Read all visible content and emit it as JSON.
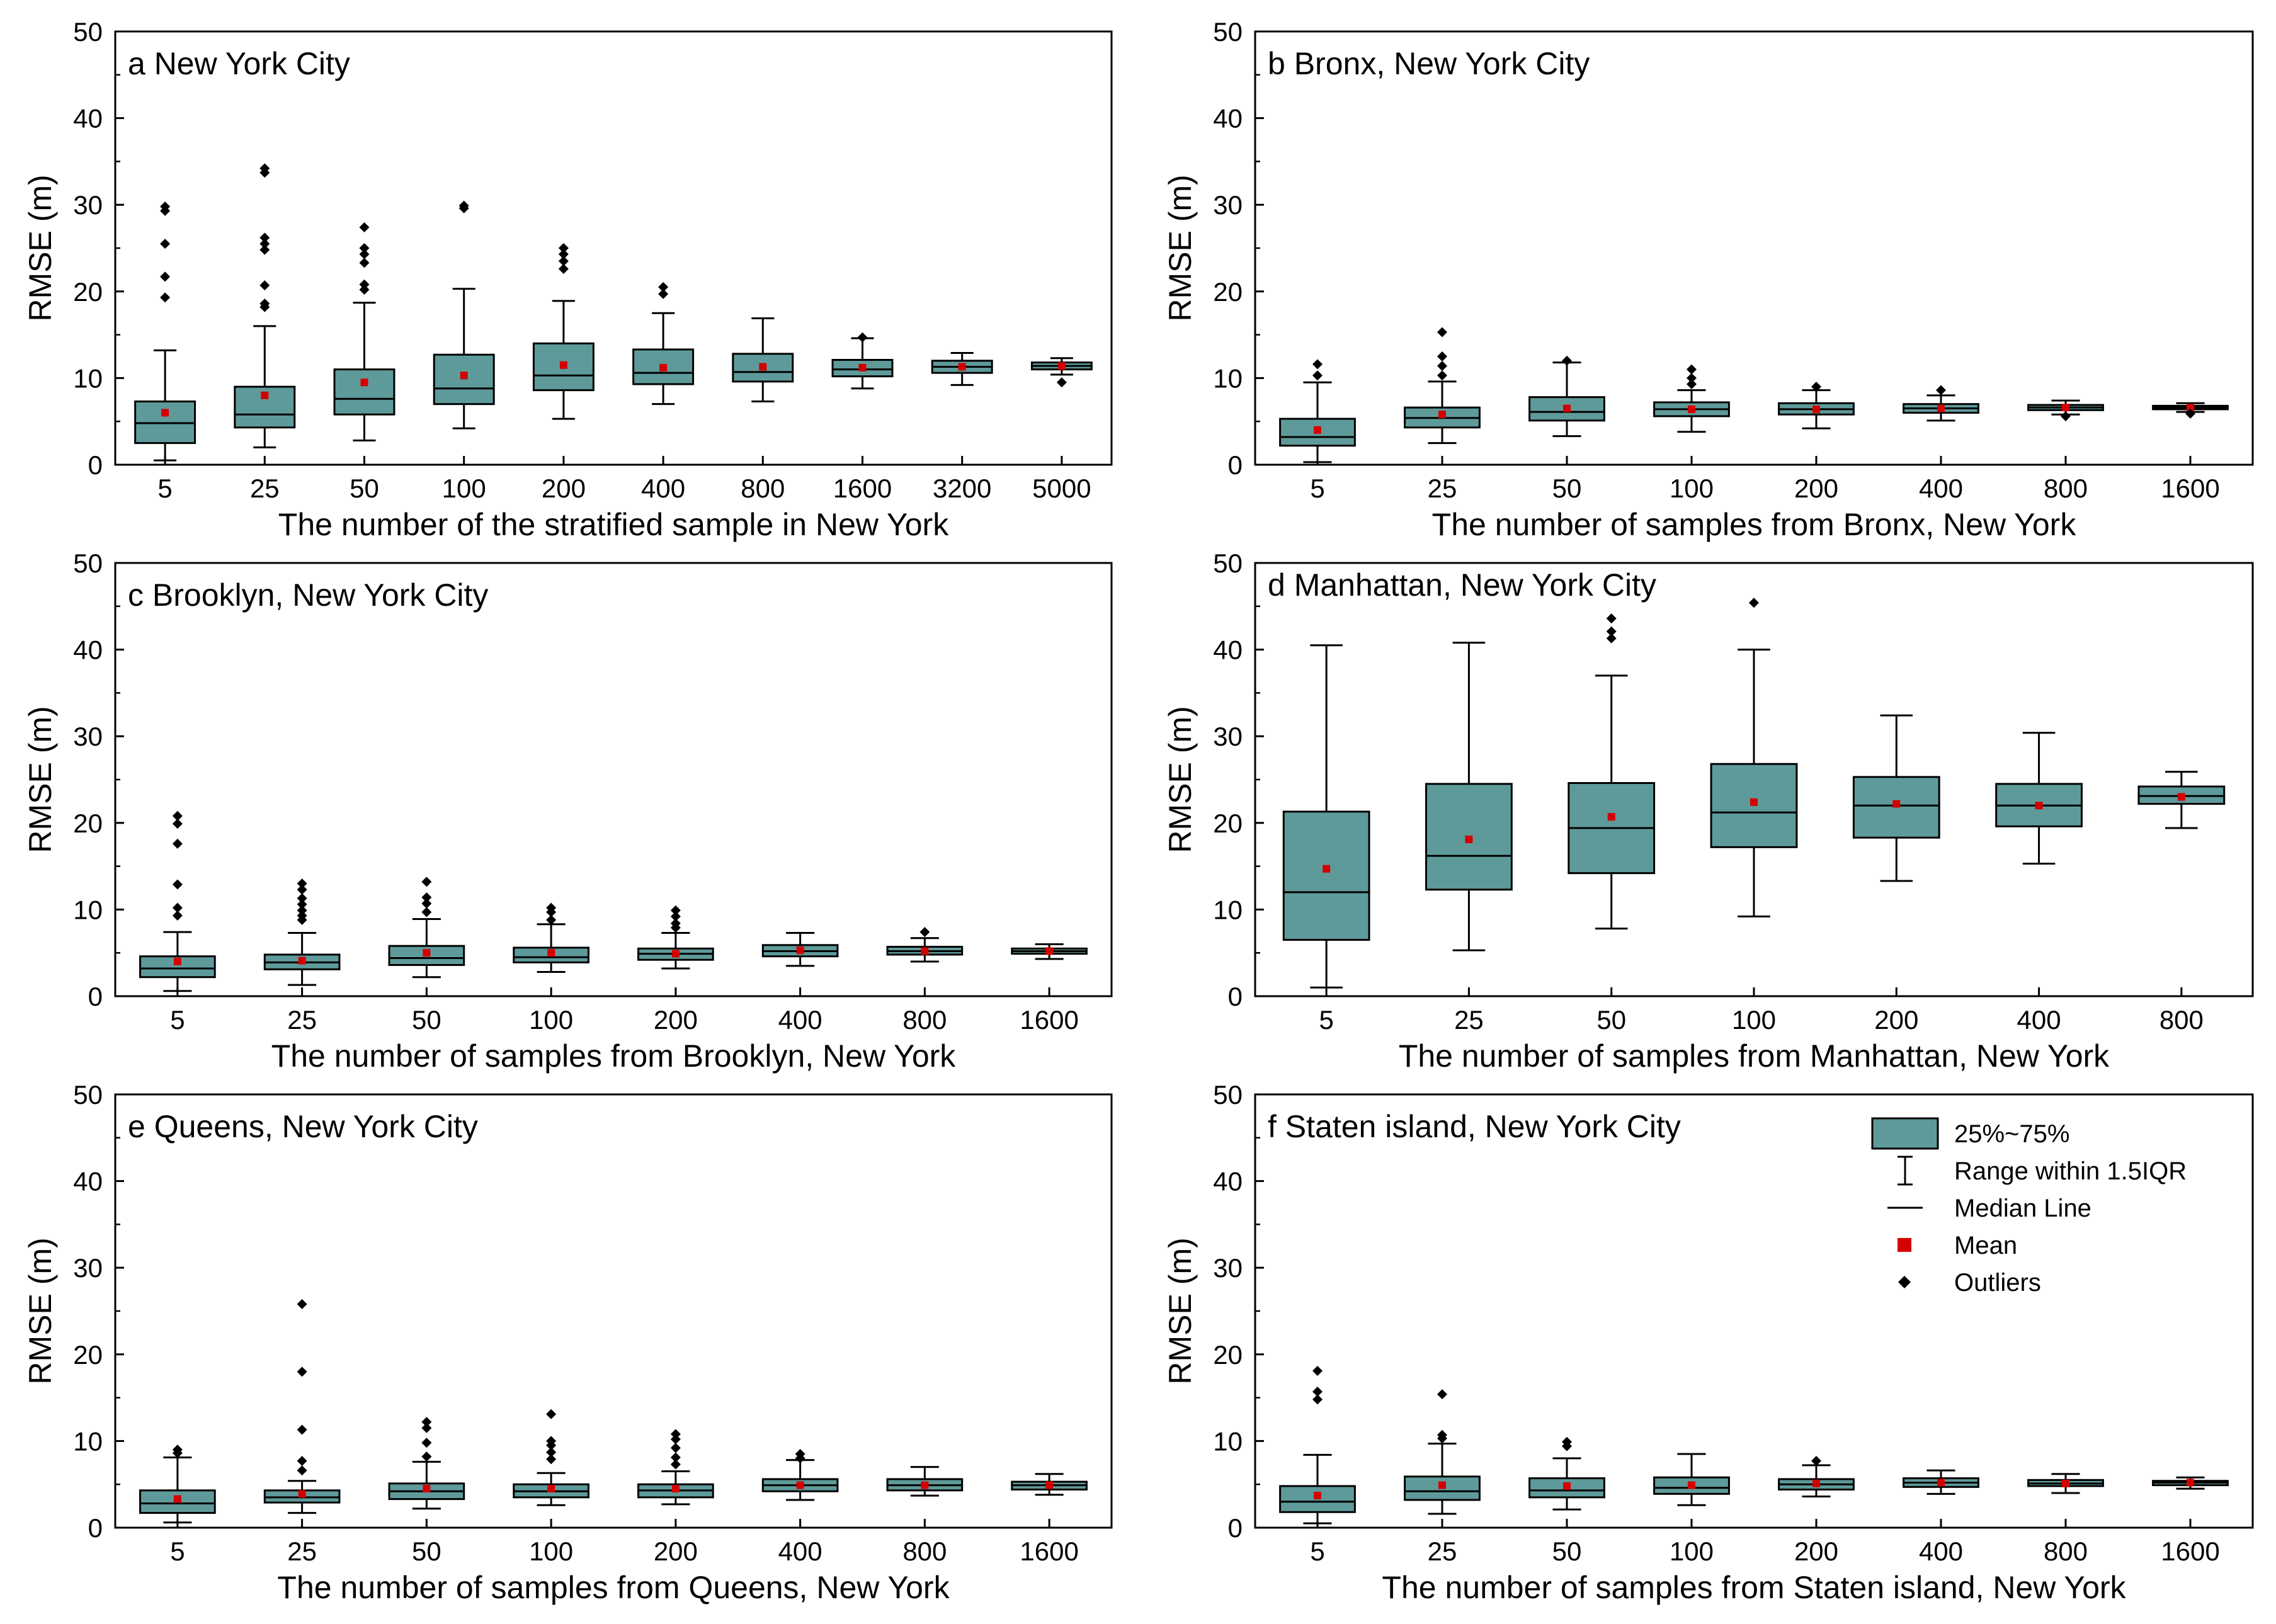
{
  "colors": {
    "box": "#5f9a9a",
    "mean": "#d40000",
    "outlier": "#000000",
    "axis": "#000000"
  },
  "legend": {
    "items": [
      {
        "label": "25%~75%",
        "icon": "box-icon"
      },
      {
        "label": "Range within 1.5IQR",
        "icon": "whisker-icon"
      },
      {
        "label": "Median Line",
        "icon": "median-line-icon"
      },
      {
        "label": "Mean",
        "icon": "mean-square-icon"
      },
      {
        "label": "Outliers",
        "icon": "outlier-diamond-icon"
      }
    ]
  },
  "chart_data": [
    {
      "type": "boxplot",
      "panel": "a",
      "title": "a New York City",
      "xlabel": "The number of the stratified sample in New York",
      "ylabel": "RMSE (m)",
      "ylim": [
        0,
        50
      ],
      "yticks": [
        0,
        10,
        20,
        30,
        40,
        50
      ],
      "categories": [
        "5",
        "25",
        "50",
        "100",
        "200",
        "400",
        "800",
        "1600",
        "3200",
        "5000"
      ],
      "boxes": [
        {
          "whisker_low": 0.5,
          "q1": 2.5,
          "median": 4.8,
          "q3": 7.3,
          "whisker_high": 13.2,
          "mean": 6.0,
          "outliers": [
            19.3,
            21.7,
            25.5,
            29.3,
            29.8
          ]
        },
        {
          "whisker_low": 2.0,
          "q1": 4.3,
          "median": 5.8,
          "q3": 9.0,
          "whisker_high": 16.0,
          "mean": 8.0,
          "outliers": [
            18.2,
            18.6,
            20.7,
            24.8,
            25.5,
            26.2,
            33.7,
            34.2
          ]
        },
        {
          "whisker_low": 2.8,
          "q1": 5.8,
          "median": 7.6,
          "q3": 11.0,
          "whisker_high": 18.7,
          "mean": 9.5,
          "outliers": [
            20.2,
            20.8,
            23.3,
            24.3,
            25.0,
            27.4
          ]
        },
        {
          "whisker_low": 4.2,
          "q1": 7.0,
          "median": 8.8,
          "q3": 12.7,
          "whisker_high": 20.3,
          "mean": 10.3,
          "outliers": [
            29.6,
            29.9
          ]
        },
        {
          "whisker_low": 5.3,
          "q1": 8.6,
          "median": 10.3,
          "q3": 14.0,
          "whisker_high": 18.9,
          "mean": 11.5,
          "outliers": [
            22.6,
            23.5,
            24.3,
            25.0
          ]
        },
        {
          "whisker_low": 7.0,
          "q1": 9.3,
          "median": 10.6,
          "q3": 13.3,
          "whisker_high": 17.5,
          "mean": 11.2,
          "outliers": [
            19.7,
            20.5
          ]
        },
        {
          "whisker_low": 7.3,
          "q1": 9.6,
          "median": 10.7,
          "q3": 12.8,
          "whisker_high": 16.9,
          "mean": 11.3,
          "outliers": []
        },
        {
          "whisker_low": 8.8,
          "q1": 10.2,
          "median": 11.0,
          "q3": 12.1,
          "whisker_high": 14.6,
          "mean": 11.2,
          "outliers": [
            14.7
          ]
        },
        {
          "whisker_low": 9.2,
          "q1": 10.6,
          "median": 11.3,
          "q3": 12.0,
          "whisker_high": 12.9,
          "mean": 11.3,
          "outliers": []
        },
        {
          "whisker_low": 10.4,
          "q1": 11.0,
          "median": 11.4,
          "q3": 11.8,
          "whisker_high": 12.3,
          "mean": 11.4,
          "outliers": [
            9.5
          ]
        }
      ]
    },
    {
      "type": "boxplot",
      "panel": "b",
      "title": "b Bronx, New York City",
      "xlabel": "The number of samples from Bronx, New York",
      "ylabel": "RMSE (m)",
      "ylim": [
        0,
        50
      ],
      "yticks": [
        0,
        10,
        20,
        30,
        40,
        50
      ],
      "categories": [
        "5",
        "25",
        "50",
        "100",
        "200",
        "400",
        "800",
        "1600"
      ],
      "boxes": [
        {
          "whisker_low": 0.3,
          "q1": 2.2,
          "median": 3.2,
          "q3": 5.3,
          "whisker_high": 9.5,
          "mean": 4.0,
          "outliers": [
            10.3,
            11.6
          ]
        },
        {
          "whisker_low": 2.5,
          "q1": 4.3,
          "median": 5.4,
          "q3": 6.6,
          "whisker_high": 9.6,
          "mean": 5.8,
          "outliers": [
            10.3,
            11.4,
            12.5,
            15.3
          ]
        },
        {
          "whisker_low": 3.3,
          "q1": 5.1,
          "median": 6.1,
          "q3": 7.8,
          "whisker_high": 11.8,
          "mean": 6.5,
          "outliers": [
            12.0
          ]
        },
        {
          "whisker_low": 3.8,
          "q1": 5.6,
          "median": 6.4,
          "q3": 7.2,
          "whisker_high": 8.6,
          "mean": 6.4,
          "outliers": [
            9.3,
            10.0,
            11.0
          ]
        },
        {
          "whisker_low": 4.2,
          "q1": 5.8,
          "median": 6.4,
          "q3": 7.1,
          "whisker_high": 8.6,
          "mean": 6.4,
          "outliers": [
            9.0
          ]
        },
        {
          "whisker_low": 5.1,
          "q1": 6.0,
          "median": 6.5,
          "q3": 7.0,
          "whisker_high": 8.0,
          "mean": 6.5,
          "outliers": [
            8.6
          ]
        },
        {
          "whisker_low": 5.8,
          "q1": 6.3,
          "median": 6.6,
          "q3": 6.9,
          "whisker_high": 7.4,
          "mean": 6.6,
          "outliers": [
            5.6
          ]
        },
        {
          "whisker_low": 6.1,
          "q1": 6.4,
          "median": 6.6,
          "q3": 6.8,
          "whisker_high": 7.1,
          "mean": 6.6,
          "outliers": [
            5.9
          ]
        }
      ]
    },
    {
      "type": "boxplot",
      "panel": "c",
      "title": "c Brooklyn, New York City",
      "xlabel": "The number of samples from Brooklyn, New York",
      "ylabel": "RMSE (m)",
      "ylim": [
        0,
        50
      ],
      "yticks": [
        0,
        10,
        20,
        30,
        40,
        50
      ],
      "categories": [
        "5",
        "25",
        "50",
        "100",
        "200",
        "400",
        "800",
        "1600"
      ],
      "boxes": [
        {
          "whisker_low": 0.6,
          "q1": 2.2,
          "median": 3.2,
          "q3": 4.6,
          "whisker_high": 7.4,
          "mean": 4.0,
          "outliers": [
            9.3,
            10.2,
            12.9,
            17.6,
            19.9,
            20.8
          ]
        },
        {
          "whisker_low": 1.3,
          "q1": 3.1,
          "median": 3.9,
          "q3": 4.8,
          "whisker_high": 7.3,
          "mean": 4.1,
          "outliers": [
            8.8,
            9.3,
            9.9,
            10.6,
            11.3,
            12.3,
            13.0
          ]
        },
        {
          "whisker_low": 2.2,
          "q1": 3.6,
          "median": 4.4,
          "q3": 5.8,
          "whisker_high": 8.9,
          "mean": 5.0,
          "outliers": [
            9.7,
            10.7,
            11.4,
            13.2
          ]
        },
        {
          "whisker_low": 2.8,
          "q1": 3.9,
          "median": 4.5,
          "q3": 5.6,
          "whisker_high": 8.3,
          "mean": 5.0,
          "outliers": [
            8.8,
            9.7,
            10.2
          ]
        },
        {
          "whisker_low": 3.2,
          "q1": 4.2,
          "median": 4.9,
          "q3": 5.5,
          "whisker_high": 7.3,
          "mean": 4.9,
          "outliers": [
            7.9,
            8.4,
            9.2,
            9.9
          ]
        },
        {
          "whisker_low": 3.5,
          "q1": 4.6,
          "median": 5.2,
          "q3": 5.9,
          "whisker_high": 7.3,
          "mean": 5.3,
          "outliers": []
        },
        {
          "whisker_low": 4.0,
          "q1": 4.8,
          "median": 5.2,
          "q3": 5.7,
          "whisker_high": 6.7,
          "mean": 5.2,
          "outliers": [
            7.4
          ]
        },
        {
          "whisker_low": 4.3,
          "q1": 4.9,
          "median": 5.2,
          "q3": 5.5,
          "whisker_high": 6.0,
          "mean": 5.2,
          "outliers": []
        }
      ]
    },
    {
      "type": "boxplot",
      "panel": "d",
      "title": "d Manhattan, New York City",
      "xlabel": "The number of samples from Manhattan, New York",
      "ylabel": "RMSE (m)",
      "ylim": [
        0,
        50
      ],
      "yticks": [
        0,
        10,
        20,
        30,
        40,
        50
      ],
      "categories": [
        "5",
        "25",
        "50",
        "100",
        "200",
        "400",
        "800"
      ],
      "boxes": [
        {
          "whisker_low": 1.0,
          "q1": 6.5,
          "median": 12.0,
          "q3": 21.3,
          "whisker_high": 40.5,
          "mean": 14.7,
          "outliers": []
        },
        {
          "whisker_low": 5.3,
          "q1": 12.3,
          "median": 16.2,
          "q3": 24.5,
          "whisker_high": 40.8,
          "mean": 18.1,
          "outliers": []
        },
        {
          "whisker_low": 7.8,
          "q1": 14.2,
          "median": 19.4,
          "q3": 24.6,
          "whisker_high": 37.0,
          "mean": 20.7,
          "outliers": [
            41.3,
            42.1,
            43.6
          ]
        },
        {
          "whisker_low": 9.2,
          "q1": 17.2,
          "median": 21.2,
          "q3": 26.8,
          "whisker_high": 40.0,
          "mean": 22.4,
          "outliers": [
            45.4
          ]
        },
        {
          "whisker_low": 13.3,
          "q1": 18.3,
          "median": 22.0,
          "q3": 25.3,
          "whisker_high": 32.4,
          "mean": 22.2,
          "outliers": []
        },
        {
          "whisker_low": 15.3,
          "q1": 19.6,
          "median": 22.0,
          "q3": 24.5,
          "whisker_high": 30.4,
          "mean": 22.0,
          "outliers": []
        },
        {
          "whisker_low": 19.4,
          "q1": 22.2,
          "median": 23.1,
          "q3": 24.2,
          "whisker_high": 25.9,
          "mean": 23.0,
          "outliers": []
        }
      ]
    },
    {
      "type": "boxplot",
      "panel": "e",
      "title": "e Queens, New York City",
      "xlabel": "The number of samples from Queens, New York",
      "ylabel": "RMSE (m)",
      "ylim": [
        0,
        50
      ],
      "yticks": [
        0,
        10,
        20,
        30,
        40,
        50
      ],
      "categories": [
        "5",
        "25",
        "50",
        "100",
        "200",
        "400",
        "800",
        "1600"
      ],
      "boxes": [
        {
          "whisker_low": 0.6,
          "q1": 1.7,
          "median": 2.8,
          "q3": 4.3,
          "whisker_high": 8.1,
          "mean": 3.3,
          "outliers": [
            8.6,
            9.0
          ]
        },
        {
          "whisker_low": 1.7,
          "q1": 2.9,
          "median": 3.5,
          "q3": 4.3,
          "whisker_high": 5.4,
          "mean": 3.9,
          "outliers": [
            6.6,
            7.7,
            11.3,
            18.0,
            25.8
          ]
        },
        {
          "whisker_low": 2.2,
          "q1": 3.3,
          "median": 4.2,
          "q3": 5.1,
          "whisker_high": 7.6,
          "mean": 4.5,
          "outliers": [
            8.2,
            9.8,
            11.5,
            12.2
          ]
        },
        {
          "whisker_low": 2.6,
          "q1": 3.5,
          "median": 4.2,
          "q3": 5.0,
          "whisker_high": 6.3,
          "mean": 4.5,
          "outliers": [
            7.9,
            8.7,
            9.5,
            10.0,
            13.1
          ]
        },
        {
          "whisker_low": 2.7,
          "q1": 3.5,
          "median": 4.3,
          "q3": 5.0,
          "whisker_high": 6.5,
          "mean": 4.5,
          "outliers": [
            7.3,
            8.1,
            9.2,
            10.2,
            10.8
          ]
        },
        {
          "whisker_low": 3.2,
          "q1": 4.2,
          "median": 4.9,
          "q3": 5.6,
          "whisker_high": 7.8,
          "mean": 4.9,
          "outliers": [
            8.0,
            8.5
          ]
        },
        {
          "whisker_low": 3.7,
          "q1": 4.3,
          "median": 4.9,
          "q3": 5.6,
          "whisker_high": 7.0,
          "mean": 4.9,
          "outliers": []
        },
        {
          "whisker_low": 3.8,
          "q1": 4.4,
          "median": 4.9,
          "q3": 5.3,
          "whisker_high": 6.2,
          "mean": 4.9,
          "outliers": []
        }
      ]
    },
    {
      "type": "boxplot",
      "panel": "f",
      "title": "f Staten island, New York City",
      "xlabel": "The number of samples from Staten island, New York",
      "ylabel": "RMSE (m)",
      "ylim": [
        0,
        50
      ],
      "yticks": [
        0,
        10,
        20,
        30,
        40,
        50
      ],
      "categories": [
        "5",
        "25",
        "50",
        "100",
        "200",
        "400",
        "800",
        "1600"
      ],
      "boxes": [
        {
          "whisker_low": 0.5,
          "q1": 1.8,
          "median": 3.0,
          "q3": 4.8,
          "whisker_high": 8.4,
          "mean": 3.7,
          "outliers": [
            14.8,
            15.7,
            18.1
          ]
        },
        {
          "whisker_low": 1.6,
          "q1": 3.2,
          "median": 4.2,
          "q3": 5.9,
          "whisker_high": 9.7,
          "mean": 4.9,
          "outliers": [
            10.3,
            10.7,
            15.4
          ]
        },
        {
          "whisker_low": 2.1,
          "q1": 3.5,
          "median": 4.3,
          "q3": 5.7,
          "whisker_high": 8.0,
          "mean": 4.8,
          "outliers": [
            9.4,
            9.9
          ]
        },
        {
          "whisker_low": 2.6,
          "q1": 3.9,
          "median": 4.6,
          "q3": 5.8,
          "whisker_high": 8.5,
          "mean": 4.9,
          "outliers": []
        },
        {
          "whisker_low": 3.6,
          "q1": 4.4,
          "median": 5.0,
          "q3": 5.6,
          "whisker_high": 7.2,
          "mean": 5.1,
          "outliers": [
            7.7
          ]
        },
        {
          "whisker_low": 3.9,
          "q1": 4.7,
          "median": 5.2,
          "q3": 5.7,
          "whisker_high": 6.6,
          "mean": 5.2,
          "outliers": []
        },
        {
          "whisker_low": 4.0,
          "q1": 4.8,
          "median": 5.1,
          "q3": 5.5,
          "whisker_high": 6.2,
          "mean": 5.1,
          "outliers": []
        },
        {
          "whisker_low": 4.5,
          "q1": 4.9,
          "median": 5.2,
          "q3": 5.4,
          "whisker_high": 5.8,
          "mean": 5.2,
          "outliers": []
        }
      ]
    }
  ]
}
